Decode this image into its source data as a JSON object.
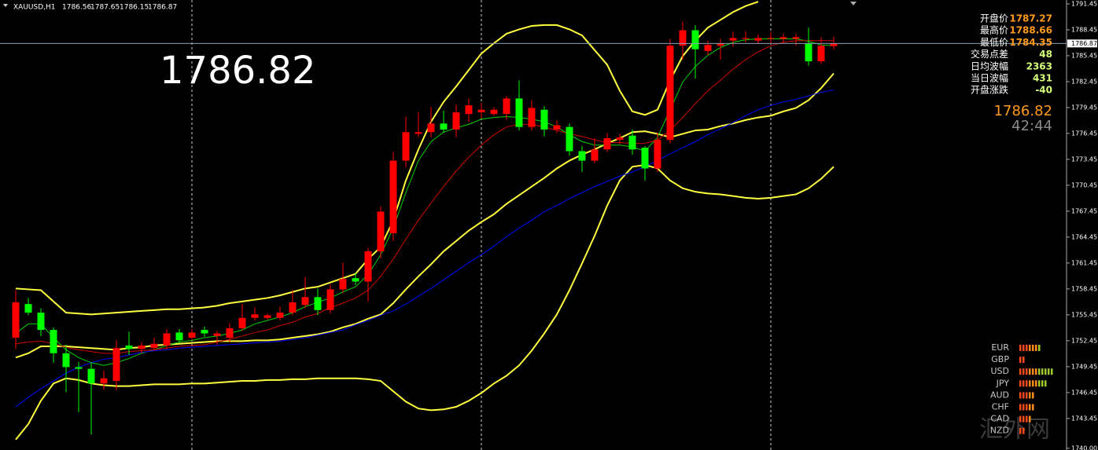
{
  "chart_data": {
    "type": "candlestick",
    "symbol": "XAUUSD,H1",
    "open": [
      1752.8,
      1756.7,
      1755.7,
      1753.7,
      1751.0,
      1749.4,
      1749.2,
      1747.5,
      1747.8,
      1751.9,
      1751.5,
      1751.6,
      1751.9,
      1753.4,
      1752.8,
      1753.7,
      1753.0,
      1752.8,
      1753.9,
      1755.1,
      1755.1,
      1755.1,
      1755.7,
      1756.6,
      1757.5,
      1756.0,
      1758.4,
      1759.7,
      1759.3,
      1762.8,
      1764.9,
      1773.3,
      1776.4,
      1776.6,
      1777.6,
      1776.9,
      1778.7,
      1778.9,
      1778.7,
      1778.7,
      1780.5,
      1777.2,
      1779.2,
      1776.9,
      1777.2,
      1774.4,
      1773.3,
      1774.6,
      1775.7,
      1776.2,
      1774.8,
      1772.4,
      1775.7,
      1786.6,
      1788.4,
      1786.0,
      1786.6,
      1787.2,
      1787.4,
      1787.2,
      1787.4,
      1787.4,
      1787.4,
      1786.9,
      1784.8,
      1786.56
    ],
    "high": [
      1758.3,
      1757.4,
      1756.2,
      1754.0,
      1752.0,
      1750.0,
      1750.0,
      1749.0,
      1752.5,
      1753.5,
      1752.3,
      1752.8,
      1753.8,
      1753.8,
      1753.8,
      1754.1,
      1753.6,
      1754.5,
      1756.7,
      1756.3,
      1755.6,
      1756.4,
      1758.3,
      1759.8,
      1758.5,
      1759.0,
      1761.5,
      1760.3,
      1763.2,
      1768.0,
      1774.3,
      1778.4,
      1778.9,
      1779.5,
      1779.1,
      1779.8,
      1780.5,
      1780.0,
      1779.5,
      1780.8,
      1782.6,
      1780.3,
      1779.6,
      1778.0,
      1777.6,
      1775.0,
      1775.9,
      1776.5,
      1776.4,
      1776.9,
      1775.0,
      1776.5,
      1787.4,
      1789.4,
      1789.0,
      1787.2,
      1787.4,
      1788.2,
      1788.3,
      1787.9,
      1788.2,
      1788.0,
      1788.0,
      1788.7,
      1787.6,
      1787.65
    ],
    "low": [
      1751.5,
      1755.4,
      1753.0,
      1749.9,
      1746.5,
      1744.2,
      1741.6,
      1746.8,
      1746.7,
      1750.8,
      1751.0,
      1751.3,
      1751.5,
      1752.2,
      1752.5,
      1752.9,
      1752.0,
      1752.3,
      1753.6,
      1754.8,
      1754.9,
      1754.8,
      1755.4,
      1756.2,
      1755.4,
      1755.6,
      1758.0,
      1758.9,
      1757.0,
      1762.0,
      1764.0,
      1772.5,
      1776.0,
      1776.0,
      1776.5,
      1776.0,
      1777.8,
      1778.2,
      1778.5,
      1778.0,
      1776.8,
      1776.8,
      1776.1,
      1776.5,
      1773.9,
      1772.0,
      1773.0,
      1774.3,
      1775.2,
      1774.0,
      1771.0,
      1772.0,
      1775.3,
      1785.0,
      1782.8,
      1785.5,
      1785.0,
      1786.5,
      1787.0,
      1786.8,
      1786.8,
      1787.0,
      1786.6,
      1784.3,
      1784.5,
      1786.15
    ],
    "close": [
      1756.9,
      1755.7,
      1753.7,
      1751.0,
      1749.4,
      1749.2,
      1747.5,
      1748.1,
      1751.6,
      1751.5,
      1751.9,
      1752.1,
      1753.3,
      1752.5,
      1753.4,
      1753.3,
      1753.3,
      1753.9,
      1755.1,
      1755.5,
      1755.4,
      1755.7,
      1756.9,
      1757.5,
      1756.0,
      1758.4,
      1759.6,
      1759.3,
      1762.8,
      1767.4,
      1773.3,
      1776.6,
      1776.6,
      1777.6,
      1776.9,
      1778.9,
      1779.7,
      1779.2,
      1779.2,
      1780.5,
      1777.2,
      1779.4,
      1776.9,
      1777.4,
      1774.4,
      1773.3,
      1774.6,
      1775.9,
      1776.0,
      1774.6,
      1772.4,
      1775.7,
      1786.6,
      1788.4,
      1786.2,
      1786.7,
      1786.9,
      1787.5,
      1787.5,
      1787.5,
      1787.5,
      1787.6,
      1787.6,
      1784.8,
      1786.6,
      1786.87
    ],
    "up_color": "#ff0000",
    "down_color": "#00ff00",
    "lines": [
      {
        "color": "#ffff40",
        "values": [
          1758.5,
          1758.4,
          1758.3,
          1757.0,
          1755.7,
          1755.6,
          1755.5,
          1755.6,
          1755.7,
          1755.8,
          1755.9,
          1756.0,
          1756.1,
          1756.1,
          1756.2,
          1756.3,
          1756.5,
          1756.8,
          1757.0,
          1757.2,
          1757.4,
          1757.7,
          1758.1,
          1758.5,
          1758.7,
          1759.2,
          1759.7,
          1760.2,
          1761.9,
          1763.3,
          1766.4,
          1771.0,
          1774.6,
          1777.8,
          1780.1,
          1781.9,
          1783.8,
          1785.7,
          1786.9,
          1788.0,
          1788.5,
          1788.9,
          1789.0,
          1789.0,
          1788.5,
          1787.8,
          1786.1,
          1784.4,
          1781.4,
          1779.0,
          1778.6,
          1779.2,
          1782.6,
          1785.4,
          1787.2,
          1788.7,
          1789.6,
          1790.5,
          1791.2,
          1791.7,
          null,
          null,
          null,
          null,
          null,
          null
        ]
      },
      {
        "color": "#ffff40",
        "values": [
          1750.5,
          1751.0,
          1751.8,
          1751.8,
          1751.8,
          1751.7,
          1751.6,
          1751.5,
          1751.4,
          1751.6,
          1751.7,
          1751.9,
          1752.0,
          1752.1,
          1752.2,
          1752.3,
          1752.4,
          1752.4,
          1752.4,
          1752.5,
          1752.5,
          1752.6,
          1752.8,
          1753.0,
          1753.2,
          1753.5,
          1754.0,
          1754.4,
          1755.0,
          1755.5,
          1756.8,
          1758.4,
          1759.9,
          1761.3,
          1762.8,
          1764.0,
          1765.2,
          1766.2,
          1767.1,
          1768.3,
          1769.3,
          1770.3,
          1771.3,
          1772.4,
          1773.3,
          1774.0,
          1774.6,
          1775.3,
          1775.9,
          1776.6,
          1776.7,
          1776.4,
          1776.0,
          1776.4,
          1776.8,
          1776.9,
          1777.3,
          1777.6,
          1778.0,
          1778.3,
          1778.5,
          1779.0,
          1779.4,
          1780.3,
          1781.7,
          1783.4
        ]
      },
      {
        "color": "#ffff40",
        "values": [
          1741.0,
          1742.8,
          1745.5,
          1747.5,
          1748.1,
          1747.9,
          1747.5,
          1747.3,
          1747.2,
          1747.2,
          1747.3,
          1747.4,
          1747.4,
          1747.4,
          1747.5,
          1747.5,
          1747.6,
          1747.7,
          1747.8,
          1747.8,
          1747.9,
          1747.9,
          1748.0,
          1748.0,
          1748.1,
          1748.1,
          1748.1,
          1748.1,
          1748.0,
          1747.8,
          1746.6,
          1745.4,
          1744.6,
          1744.4,
          1744.5,
          1744.8,
          1745.5,
          1746.4,
          1747.5,
          1748.4,
          1749.6,
          1751.3,
          1753.3,
          1755.5,
          1758.3,
          1761.4,
          1764.6,
          1768.1,
          1771.0,
          1772.6,
          1772.8,
          1772.4,
          1771.0,
          1770.1,
          1769.7,
          1769.5,
          1769.4,
          1769.2,
          1769.0,
          1768.9,
          1769.0,
          1769.2,
          1769.4,
          1770.1,
          1771.2,
          1772.6
        ]
      },
      {
        "color": "#00d000",
        "values": [
          1753.3,
          1754.4,
          1754.4,
          1752.8,
          1751.4,
          1750.5,
          1749.9,
          1749.6,
          1749.9,
          1750.4,
          1751.0,
          1751.4,
          1751.9,
          1752.3,
          1752.5,
          1752.8,
          1753.0,
          1753.3,
          1753.7,
          1754.4,
          1754.8,
          1755.2,
          1755.7,
          1756.4,
          1756.9,
          1757.4,
          1758.1,
          1758.7,
          1760.1,
          1762.4,
          1765.5,
          1769.6,
          1773.3,
          1775.5,
          1776.6,
          1777.1,
          1777.5,
          1778.1,
          1778.3,
          1778.4,
          1778.3,
          1778.1,
          1777.8,
          1777.2,
          1776.3,
          1775.5,
          1775.1,
          1775.1,
          1775.1,
          1774.9,
          1774.4,
          1776.0,
          1779.2,
          1782.4,
          1784.2,
          1785.5,
          1786.4,
          1787.0,
          1787.3,
          1787.4,
          1787.4,
          1787.4,
          1787.4,
          1787.1,
          1786.7,
          1786.6
        ]
      },
      {
        "color": "#d00000",
        "values": [
          1752.1,
          1752.3,
          1752.4,
          1752.1,
          1751.7,
          1751.4,
          1751.2,
          1751.0,
          1751.0,
          1751.2,
          1751.3,
          1751.4,
          1751.6,
          1751.8,
          1751.9,
          1752.0,
          1752.3,
          1752.6,
          1753.0,
          1753.4,
          1753.7,
          1754.2,
          1754.6,
          1755.2,
          1755.6,
          1756.3,
          1756.8,
          1757.4,
          1758.3,
          1759.9,
          1761.9,
          1764.2,
          1766.4,
          1768.4,
          1770.3,
          1772.1,
          1773.7,
          1775.1,
          1776.3,
          1777.2,
          1777.5,
          1777.5,
          1777.2,
          1776.8,
          1776.4,
          1776.1,
          1775.7,
          1775.4,
          1775.4,
          1775.3,
          1775.3,
          1775.7,
          1776.8,
          1778.3,
          1779.9,
          1781.4,
          1782.6,
          1783.9,
          1785.0,
          1785.9,
          1786.6,
          1787.0,
          1787.2,
          1787.2,
          1787.2,
          1787.2
        ]
      },
      {
        "color": "#0000ff",
        "values": [
          1744.8,
          1745.9,
          1746.9,
          1747.8,
          1748.7,
          1749.4,
          1749.9,
          1750.3,
          1750.5,
          1750.8,
          1751.1,
          1751.3,
          1751.4,
          1751.6,
          1751.7,
          1751.8,
          1751.9,
          1752.0,
          1752.1,
          1752.2,
          1752.3,
          1752.4,
          1752.6,
          1752.8,
          1753.1,
          1753.4,
          1753.7,
          1754.3,
          1754.8,
          1755.4,
          1755.9,
          1756.7,
          1757.6,
          1758.5,
          1759.5,
          1760.5,
          1761.5,
          1762.4,
          1763.4,
          1764.5,
          1765.5,
          1766.4,
          1767.4,
          1768.1,
          1768.9,
          1769.6,
          1770.3,
          1770.9,
          1771.5,
          1772.0,
          1772.6,
          1773.3,
          1774.1,
          1774.8,
          1775.5,
          1776.3,
          1777.0,
          1777.7,
          1778.5,
          1779.2,
          1779.7,
          1780.1,
          1780.4,
          1780.8,
          1781.2,
          1781.5
        ]
      }
    ],
    "ylim": [
      1739.8,
      1791.9
    ],
    "yticks": [
      1791.45,
      1788.45,
      1785.45,
      1782.45,
      1779.45,
      1776.45,
      1773.45,
      1770.45,
      1767.45,
      1764.45,
      1761.45,
      1758.45,
      1755.45,
      1752.45,
      1749.45,
      1746.45,
      1743.45,
      {
        "value": 1740,
        "label": "1740.00"
      }
    ]
  },
  "overlay": {
    "price": 1786.82,
    "timer": "42:44",
    "stats": [
      {
        "label": "开盘价",
        "value": 1787.27
      },
      {
        "label": "最高价",
        "value": 1788.66
      },
      {
        "label": "最低价",
        "value": 1784.35
      },
      {
        "label": "交易点差",
        "value": 48
      },
      {
        "label": "日均波幅",
        "value": 2363
      },
      {
        "label": "当日波幅",
        "value": 431
      },
      {
        "label": "开盘涨跌",
        "value": -40
      }
    ],
    "strength": [
      {
        "currency": "EUR",
        "value": 7
      },
      {
        "currency": "GBP",
        "value": 2
      },
      {
        "currency": "USD",
        "value": 11
      },
      {
        "currency": "JPY",
        "value": 9
      },
      {
        "currency": "AUD",
        "value": 5
      },
      {
        "currency": "CHF",
        "value": 5
      },
      {
        "currency": "CAD",
        "value": 4
      },
      {
        "currency": "NZD",
        "value": 2
      }
    ],
    "watermark": "汇外网"
  }
}
